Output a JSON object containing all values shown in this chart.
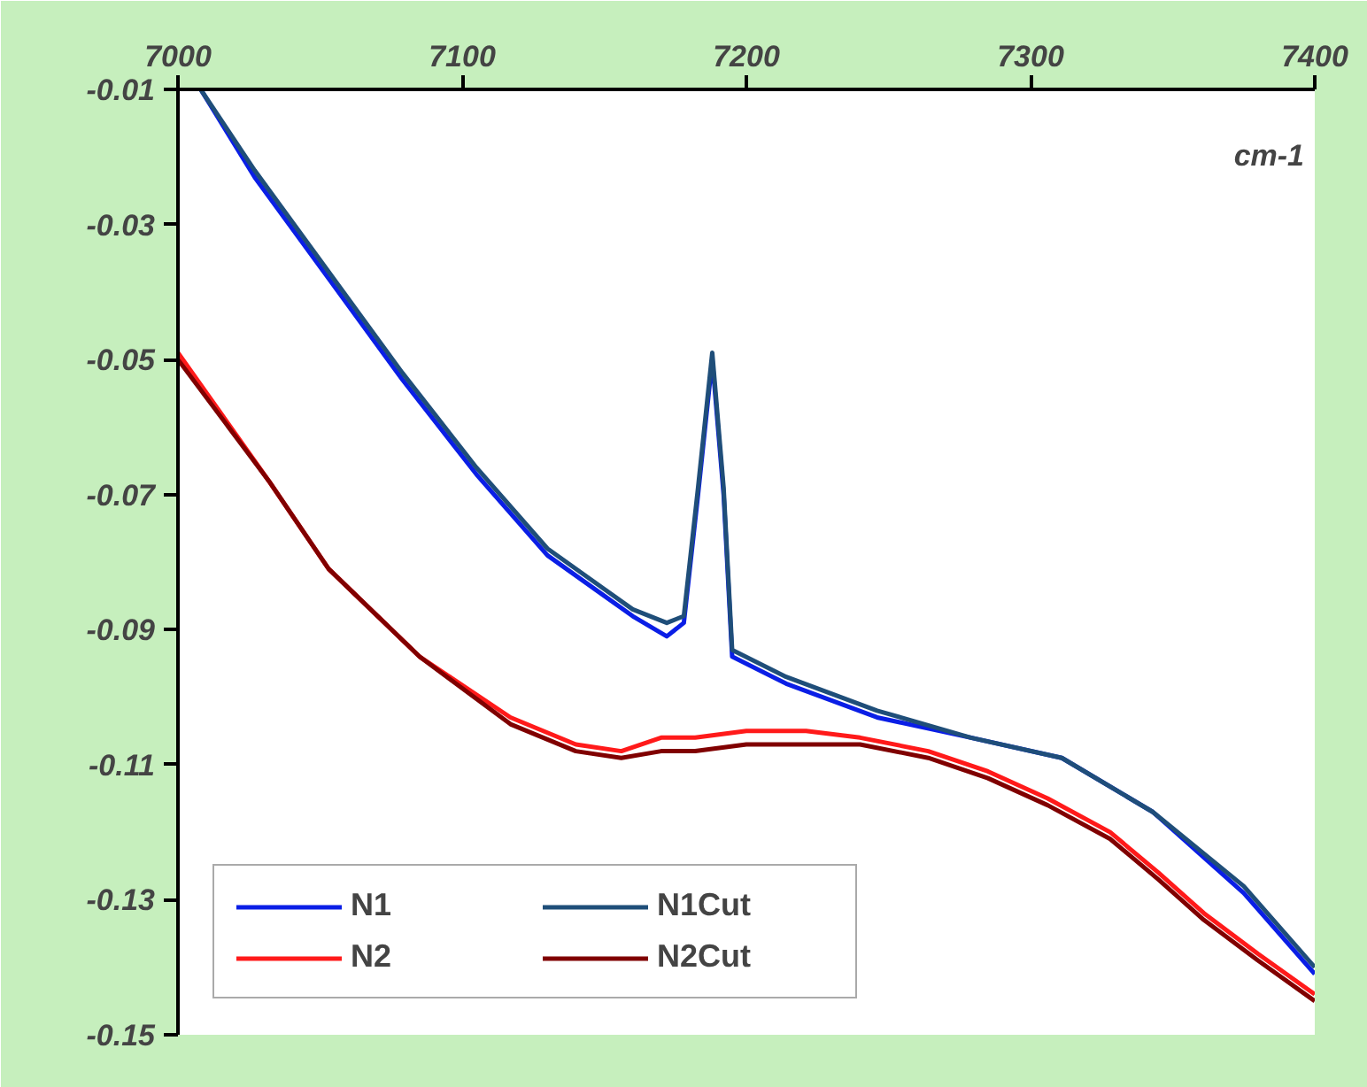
{
  "chart_data": {
    "type": "line",
    "xlabel": "cm-1",
    "xlim": [
      7000,
      7400
    ],
    "xticks": [
      7000,
      7100,
      7200,
      7300,
      7400
    ],
    "ylim": [
      -0.15,
      -0.01
    ],
    "yticks": [
      -0.15,
      -0.13,
      -0.11,
      -0.09,
      -0.07,
      -0.05,
      -0.03,
      -0.01
    ],
    "grid": false,
    "legend": "bottom left",
    "line_style": "solid",
    "marker": "none",
    "series": [
      {
        "name": "N1",
        "color": "#0a1ee6",
        "x": [
          7008,
          7027,
          7053,
          7079,
          7105,
          7130,
          7150,
          7160,
          7172,
          7178,
          7183,
          7188,
          7192,
          7195,
          7214,
          7246,
          7279,
          7311,
          7343,
          7375,
          7400
        ],
        "values": [
          -0.01,
          -0.023,
          -0.038,
          -0.053,
          -0.067,
          -0.079,
          -0.085,
          -0.088,
          -0.091,
          -0.089,
          -0.07,
          -0.05,
          -0.07,
          -0.094,
          -0.098,
          -0.103,
          -0.106,
          -0.109,
          -0.117,
          -0.129,
          -0.141
        ]
      },
      {
        "name": "N1Cut",
        "color": "#1f4e79",
        "x": [
          7008,
          7027,
          7053,
          7079,
          7105,
          7130,
          7150,
          7160,
          7172,
          7178,
          7183,
          7188,
          7192,
          7195,
          7214,
          7246,
          7279,
          7311,
          7343,
          7375,
          7400
        ],
        "values": [
          -0.01,
          -0.022,
          -0.037,
          -0.052,
          -0.066,
          -0.078,
          -0.084,
          -0.087,
          -0.089,
          -0.088,
          -0.069,
          -0.049,
          -0.069,
          -0.093,
          -0.097,
          -0.102,
          -0.106,
          -0.109,
          -0.117,
          -0.128,
          -0.14
        ]
      },
      {
        "name": "N2",
        "color": "#ff1a1a",
        "x": [
          7000,
          7032,
          7053,
          7085,
          7117,
          7140,
          7156,
          7170,
          7182,
          7200,
          7221,
          7240,
          7264,
          7285,
          7306,
          7328,
          7345,
          7361,
          7380,
          7400
        ],
        "values": [
          -0.049,
          -0.068,
          -0.081,
          -0.094,
          -0.103,
          -0.107,
          -0.108,
          -0.106,
          -0.106,
          -0.105,
          -0.105,
          -0.106,
          -0.108,
          -0.111,
          -0.115,
          -0.12,
          -0.126,
          -0.132,
          -0.138,
          -0.144
        ]
      },
      {
        "name": "N2Cut",
        "color": "#800000",
        "x": [
          7000,
          7032,
          7053,
          7085,
          7117,
          7140,
          7156,
          7170,
          7182,
          7200,
          7221,
          7240,
          7264,
          7285,
          7306,
          7328,
          7345,
          7361,
          7380,
          7400
        ],
        "values": [
          -0.05,
          -0.068,
          -0.081,
          -0.094,
          -0.104,
          -0.108,
          -0.109,
          -0.108,
          -0.108,
          -0.107,
          -0.107,
          -0.107,
          -0.109,
          -0.112,
          -0.116,
          -0.121,
          -0.127,
          -0.133,
          -0.139,
          -0.145
        ]
      }
    ]
  }
}
